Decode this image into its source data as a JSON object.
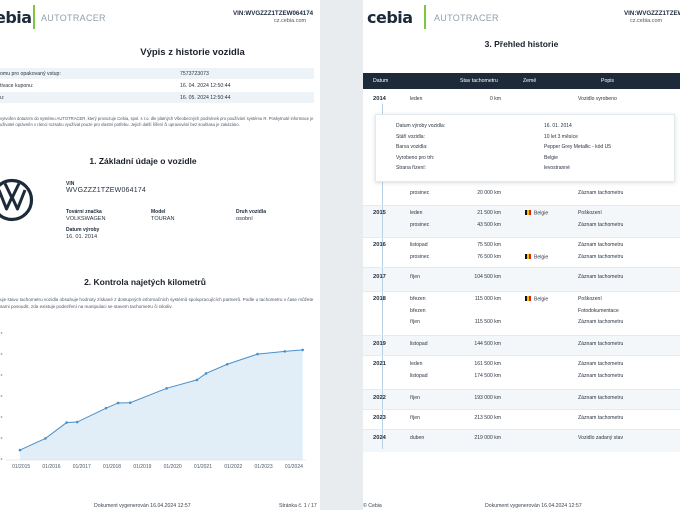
{
  "header": {
    "logo": "cebia",
    "brand": "AUTOTRACER",
    "vin_label": "VIN:WVGZZZ1TZEW064174",
    "site": "cz.cebia.com"
  },
  "left": {
    "title": "Výpis z historie vozidla",
    "meta": [
      {
        "k": "omu pro opakovaný vstup:",
        "v": "7573723073"
      },
      {
        "k": "tivace kuponu:",
        "v": "16. 04. 2024 12:50:44"
      },
      {
        "k": "u:",
        "v": "16. 05. 2024 12:50:44"
      }
    ],
    "disclaimer": "vytvořen dotazem do systému AUTOTRACER, který provozuje Cebia, spol. s r.o. dle platných Všeobecných podmínek pro používání systému R. Poskytnuté informace je uživatel oprávněn v rámci rozsahu využívat pouze pro vlastní potřebu. Jejich další šíření či upravování bez souhlasu je zakázáno.",
    "section1": "1. Základní údaje o vozidle",
    "vin_caption": "VIN",
    "vin": "WVGZZZ1TZEW064174",
    "make_label": "Tovární značka",
    "make": "VOLKSWAGEN",
    "model_label": "Model",
    "model": "TOURAN",
    "type_label": "Druh vozidla",
    "type": "osobní",
    "date_label": "Datum výroby",
    "date": "16. 01. 2014",
    "section2": "2. Kontrola najetých kilometrů",
    "km_text": "uje stavu tachometru vozidla obsahuje hodnoty získané z dostupných informačních systémů spolupracujících partnerů. Podle u tachometru v čase můžete sami posoudit, zda existuje podezření na manipulaci se stavem tachometru či nikoliv.",
    "footer_generated": "Dokument vygenerován 16.04.2024 12:57",
    "footer_page": "Stránka č. 1 / 17"
  },
  "chart_data": {
    "type": "line",
    "x": [
      "01/2015",
      "01/2016",
      "01/2017",
      "01/2018",
      "01/2019",
      "01/2020",
      "01/2021",
      "01/2022",
      "01/2023",
      "01/2024"
    ],
    "points": [
      [
        2014.96,
        20000
      ],
      [
        2015.8,
        43500
      ],
      [
        2016.5,
        75500
      ],
      [
        2016.85,
        76500
      ],
      [
        2017.8,
        104500
      ],
      [
        2018.2,
        115000
      ],
      [
        2018.6,
        115500
      ],
      [
        2019.8,
        144500
      ],
      [
        2020.8,
        161500
      ],
      [
        2021.1,
        174500
      ],
      [
        2021.8,
        193000
      ],
      [
        2022.8,
        213500
      ],
      [
        2023.7,
        219000
      ],
      [
        2024.29,
        222000
      ]
    ],
    "xlim": [
      2014.5,
      2024.4
    ],
    "ylim": [
      0,
      250000
    ],
    "grid": false,
    "line_color": "#4a90c8",
    "fill_color": "#dcebf7"
  },
  "right": {
    "title": "3. Přehled historie",
    "columns": {
      "date": "Datum",
      "km": "Stav tachometru",
      "country": "Země",
      "desc": "Popis"
    },
    "years": [
      {
        "year": "2014",
        "rows": [
          {
            "m": "leden",
            "km": "0 km",
            "c": "",
            "d": "Vozidlo vyrobeno"
          },
          {
            "m": "prosinec",
            "km": "20 000 km",
            "c": "",
            "d": "Záznam tachometru"
          }
        ]
      },
      {
        "year": "2015",
        "rows": [
          {
            "m": "leden",
            "km": "21 500 km",
            "c": "Belgie",
            "d": "Poškození"
          },
          {
            "m": "prosinec",
            "km": "43 500 km",
            "c": "",
            "d": "Záznam tachometru"
          }
        ]
      },
      {
        "year": "2016",
        "rows": [
          {
            "m": "listopad",
            "km": "75 500 km",
            "c": "",
            "d": "Záznam tachometru"
          },
          {
            "m": "prosinec",
            "km": "76 500 km",
            "c": "Belgie",
            "d": "Záznam tachometru"
          }
        ]
      },
      {
        "year": "2017",
        "rows": [
          {
            "m": "říjen",
            "km": "104 500 km",
            "c": "",
            "d": "Záznam tachometru"
          }
        ]
      },
      {
        "year": "2018",
        "rows": [
          {
            "m": "březen",
            "km": "115 000 km",
            "c": "Belgie",
            "d": "Poškození"
          },
          {
            "m": "březen",
            "km": "",
            "c": "",
            "d": "Fotodokumentace"
          },
          {
            "m": "říjen",
            "km": "115 500 km",
            "c": "",
            "d": "Záznam tachometru"
          }
        ]
      },
      {
        "year": "2019",
        "rows": [
          {
            "m": "listopad",
            "km": "144 500 km",
            "c": "",
            "d": "Záznam tachometru"
          }
        ]
      },
      {
        "year": "2021",
        "rows": [
          {
            "m": "leden",
            "km": "161 500 km",
            "c": "",
            "d": "Záznam tachometru"
          },
          {
            "m": "listopad",
            "km": "174 500 km",
            "c": "",
            "d": "Záznam tachometru"
          }
        ]
      },
      {
        "year": "2022",
        "rows": [
          {
            "m": "říjen",
            "km": "193 000 km",
            "c": "",
            "d": "Záznam tachometru"
          }
        ]
      },
      {
        "year": "2023",
        "rows": [
          {
            "m": "říjen",
            "km": "213 500 km",
            "c": "",
            "d": "Záznam tachometru"
          }
        ]
      },
      {
        "year": "2024",
        "rows": [
          {
            "m": "duben",
            "km": "219 000 km",
            "c": "",
            "d": "Vozidlo zadaný stav"
          }
        ]
      }
    ],
    "detail": [
      {
        "k": "Datum výroby vozidla:",
        "v": "16. 01. 2014"
      },
      {
        "k": "Stáří vozidla:",
        "v": "10 let 3 měsíce"
      },
      {
        "k": "Barva vozidla:",
        "v": "Pepper Grey Metallic - kód U5"
      },
      {
        "k": "Vyrobeno pro trh:",
        "v": "Belgie"
      },
      {
        "k": "Strana řízení:",
        "v": "levostranné"
      }
    ],
    "footer_brand": "© Cebia",
    "footer_generated": "Dokument vygenerován 16.04.2024 12:57"
  }
}
